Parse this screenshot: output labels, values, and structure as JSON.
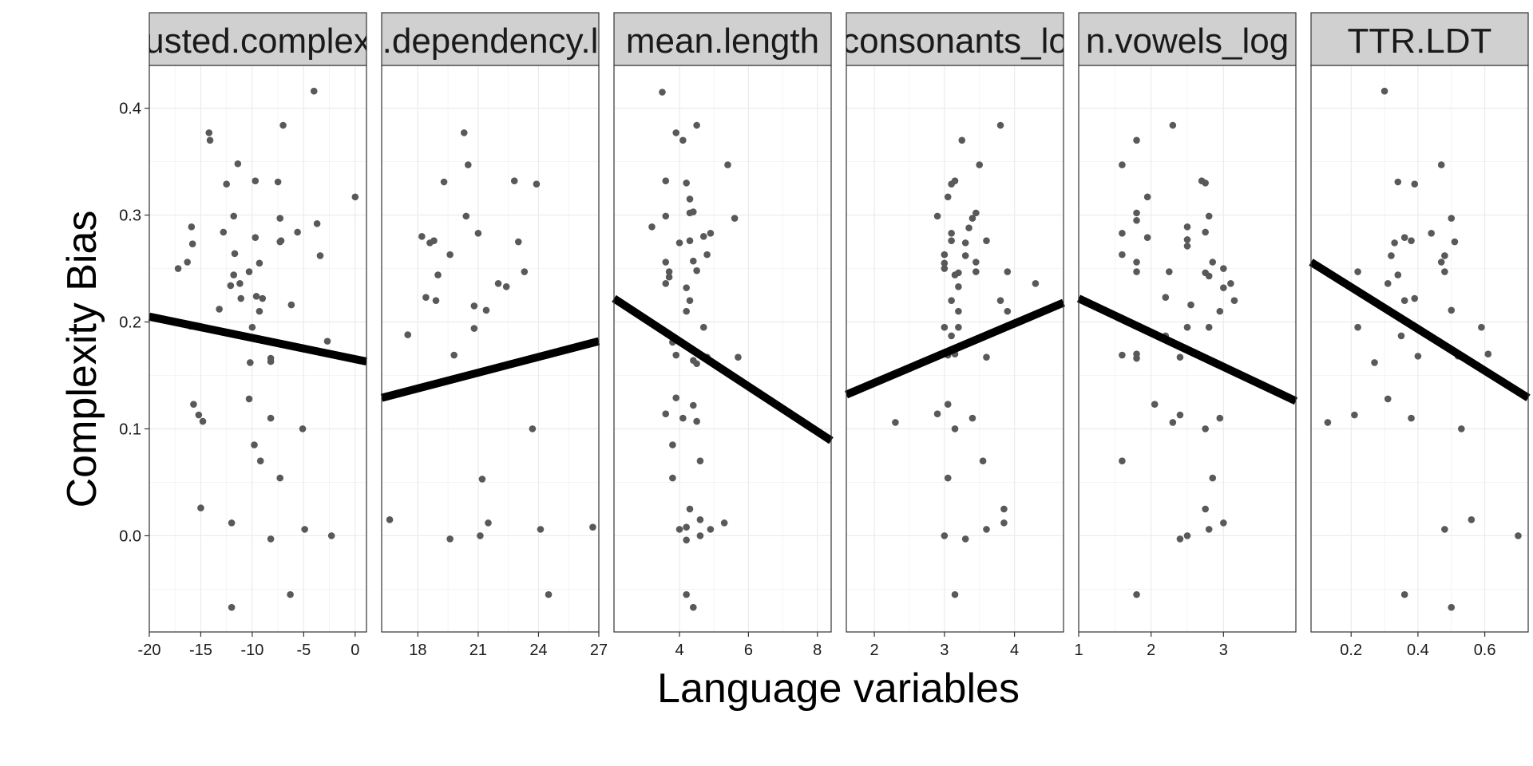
{
  "chart_data": {
    "type": "scatter",
    "layout": "facets",
    "xlabel": "Language variables",
    "ylabel": "Complexity Bias",
    "ylim": [
      -0.09,
      0.44
    ],
    "yticks": [
      0.0,
      0.1,
      0.2,
      0.3,
      0.4
    ],
    "ytick_labels": [
      "0.0",
      "0.1",
      "0.2",
      "0.3",
      "0.4"
    ],
    "grid": true,
    "point_color": "#595959",
    "line_color": "#000000",
    "facets": [
      {
        "label": "usted.complex",
        "xlim": [
          -20,
          1.1
        ],
        "xticks": [
          -20,
          -15,
          -10,
          -5,
          0
        ],
        "xtick_labels": [
          "-20",
          "-15",
          "-10",
          "-5",
          "0"
        ],
        "fit": [
          [
            -20,
            0.205
          ],
          [
            1.1,
            0.163
          ]
        ],
        "points": [
          [
            -17.2,
            0.25
          ],
          [
            -16.3,
            0.256
          ],
          [
            -15.9,
            0.289
          ],
          [
            -15.8,
            0.273
          ],
          [
            -14.2,
            0.377
          ],
          [
            -14.1,
            0.37
          ],
          [
            -13.2,
            0.212
          ],
          [
            -12.8,
            0.284
          ],
          [
            -12.5,
            0.329
          ],
          [
            -12.1,
            0.234
          ],
          [
            -11.8,
            0.299
          ],
          [
            -11.7,
            0.264
          ],
          [
            -11.8,
            0.244
          ],
          [
            -11.4,
            0.348
          ],
          [
            -11.2,
            0.236
          ],
          [
            -11.1,
            0.222
          ],
          [
            -10.3,
            0.247
          ],
          [
            -10.0,
            0.195
          ],
          [
            -9.7,
            0.332
          ],
          [
            -9.7,
            0.279
          ],
          [
            -9.6,
            0.224
          ],
          [
            -9.3,
            0.255
          ],
          [
            -9.3,
            0.21
          ],
          [
            -9.0,
            0.222
          ],
          [
            -8.2,
            0.166
          ],
          [
            -8.2,
            0.163
          ],
          [
            -7.5,
            0.331
          ],
          [
            -7.3,
            0.297
          ],
          [
            -7.2,
            0.276
          ],
          [
            -7.0,
            0.384
          ],
          [
            -7.3,
            0.275
          ],
          [
            -6.2,
            0.216
          ],
          [
            -5.6,
            0.284
          ],
          [
            -4.0,
            0.416
          ],
          [
            -3.7,
            0.292
          ],
          [
            -3.4,
            0.262
          ],
          [
            -2.7,
            0.182
          ],
          [
            0.0,
            0.317
          ],
          [
            -16.0,
            0.196
          ],
          [
            -15.7,
            0.123
          ],
          [
            -15.2,
            0.113
          ],
          [
            -14.8,
            0.107
          ],
          [
            -15.0,
            0.026
          ],
          [
            -12.0,
            0.012
          ],
          [
            -12.0,
            -0.067
          ],
          [
            -10.2,
            0.162
          ],
          [
            -10.3,
            0.128
          ],
          [
            -9.8,
            0.085
          ],
          [
            -9.2,
            0.07
          ],
          [
            -8.2,
            0.11
          ],
          [
            -8.2,
            -0.003
          ],
          [
            -7.3,
            0.054
          ],
          [
            -6.3,
            -0.055
          ],
          [
            -5.1,
            0.1
          ],
          [
            -4.9,
            0.006
          ],
          [
            -2.3,
            0.0
          ]
        ]
      },
      {
        "label": ".dependency.l",
        "xlim": [
          16.2,
          27
        ],
        "xticks": [
          18,
          21,
          24,
          27
        ],
        "xtick_labels": [
          "18",
          "21",
          "24",
          "27"
        ],
        "fit": [
          [
            16.2,
            0.129
          ],
          [
            27,
            0.182
          ]
        ],
        "points": [
          [
            16.6,
            0.015
          ],
          [
            17.5,
            0.188
          ],
          [
            18.2,
            0.28
          ],
          [
            18.4,
            0.223
          ],
          [
            18.6,
            0.274
          ],
          [
            18.8,
            0.276
          ],
          [
            19.0,
            0.244
          ],
          [
            18.9,
            0.22
          ],
          [
            19.3,
            0.331
          ],
          [
            19.6,
            0.263
          ],
          [
            19.8,
            0.169
          ],
          [
            19.6,
            -0.003
          ],
          [
            20.3,
            0.377
          ],
          [
            20.4,
            0.299
          ],
          [
            20.5,
            0.347
          ],
          [
            20.8,
            0.215
          ],
          [
            20.8,
            0.194
          ],
          [
            21.0,
            0.283
          ],
          [
            21.1,
            0.0
          ],
          [
            21.2,
            0.053
          ],
          [
            21.4,
            0.211
          ],
          [
            21.5,
            0.012
          ],
          [
            22.0,
            0.236
          ],
          [
            22.4,
            0.233
          ],
          [
            22.8,
            0.332
          ],
          [
            23.0,
            0.275
          ],
          [
            23.3,
            0.247
          ],
          [
            23.7,
            0.1
          ],
          [
            23.9,
            0.329
          ],
          [
            24.1,
            0.006
          ],
          [
            24.5,
            -0.055
          ],
          [
            26.7,
            0.008
          ]
        ]
      },
      {
        "label": "mean.length",
        "xlim": [
          2.1,
          8.4
        ],
        "xticks": [
          4,
          6,
          8
        ],
        "xtick_labels": [
          "4",
          "6",
          "8"
        ],
        "fit": [
          [
            2.1,
            0.222
          ],
          [
            8.4,
            0.089
          ]
        ],
        "points": [
          [
            3.2,
            0.289
          ],
          [
            3.5,
            0.415
          ],
          [
            3.6,
            0.332
          ],
          [
            3.6,
            0.299
          ],
          [
            3.6,
            0.256
          ],
          [
            3.7,
            0.247
          ],
          [
            3.6,
            0.236
          ],
          [
            3.7,
            0.242
          ],
          [
            3.6,
            0.114
          ],
          [
            3.8,
            0.181
          ],
          [
            3.8,
            0.085
          ],
          [
            3.8,
            0.054
          ],
          [
            3.9,
            0.377
          ],
          [
            4.0,
            0.274
          ],
          [
            3.9,
            0.169
          ],
          [
            3.9,
            0.129
          ],
          [
            4.0,
            0.006
          ],
          [
            4.1,
            0.37
          ],
          [
            4.2,
            0.33
          ],
          [
            4.1,
            0.11
          ],
          [
            4.2,
            0.232
          ],
          [
            4.2,
            0.008
          ],
          [
            4.3,
            0.315
          ],
          [
            4.3,
            0.302
          ],
          [
            4.2,
            0.21
          ],
          [
            4.3,
            0.276
          ],
          [
            4.2,
            -0.004
          ],
          [
            4.2,
            -0.055
          ],
          [
            4.3,
            0.22
          ],
          [
            4.3,
            0.025
          ],
          [
            4.4,
            0.303
          ],
          [
            4.4,
            0.122
          ],
          [
            4.4,
            0.257
          ],
          [
            4.5,
            0.384
          ],
          [
            4.4,
            0.164
          ],
          [
            4.5,
            0.248
          ],
          [
            4.5,
            0.161
          ],
          [
            4.5,
            0.107
          ],
          [
            4.4,
            -0.067
          ],
          [
            4.6,
            0.015
          ],
          [
            4.6,
            0.07
          ],
          [
            4.7,
            0.28
          ],
          [
            4.6,
            0.0
          ],
          [
            4.7,
            0.195
          ],
          [
            4.8,
            0.263
          ],
          [
            4.8,
            0.167
          ],
          [
            4.9,
            0.283
          ],
          [
            4.9,
            0.006
          ],
          [
            5.3,
            0.012
          ],
          [
            5.4,
            0.347
          ],
          [
            5.6,
            0.297
          ],
          [
            5.7,
            0.167
          ]
        ]
      },
      {
        "label": "consonants_lo",
        "xlim": [
          1.6,
          4.7
        ],
        "xticks": [
          2,
          3,
          4
        ],
        "xtick_labels": [
          "2",
          "3",
          "4"
        ],
        "fit": [
          [
            1.6,
            0.132
          ],
          [
            4.7,
            0.218
          ]
        ],
        "points": [
          [
            2.3,
            0.106
          ],
          [
            2.9,
            0.299
          ],
          [
            2.9,
            0.114
          ],
          [
            3.0,
            0.263
          ],
          [
            3.0,
            0.255
          ],
          [
            3.0,
            0.25
          ],
          [
            3.05,
            0.317
          ],
          [
            3.0,
            0.195
          ],
          [
            3.05,
            0.169
          ],
          [
            3.05,
            0.123
          ],
          [
            3.05,
            0.054
          ],
          [
            3.0,
            0.0
          ],
          [
            3.1,
            0.329
          ],
          [
            3.1,
            0.283
          ],
          [
            3.1,
            0.276
          ],
          [
            3.1,
            0.22
          ],
          [
            3.1,
            0.187
          ],
          [
            3.15,
            0.332
          ],
          [
            3.15,
            0.244
          ],
          [
            3.2,
            0.246
          ],
          [
            3.2,
            0.21
          ],
          [
            3.15,
            0.17
          ],
          [
            3.15,
            0.1
          ],
          [
            3.15,
            -0.055
          ],
          [
            3.2,
            0.233
          ],
          [
            3.2,
            0.195
          ],
          [
            3.2,
            0.176
          ],
          [
            3.25,
            0.37
          ],
          [
            3.3,
            0.274
          ],
          [
            3.3,
            0.262
          ],
          [
            3.3,
            -0.003
          ],
          [
            3.35,
            0.288
          ],
          [
            3.4,
            0.297
          ],
          [
            3.4,
            0.11
          ],
          [
            3.45,
            0.302
          ],
          [
            3.45,
            0.256
          ],
          [
            3.45,
            0.247
          ],
          [
            3.5,
            0.347
          ],
          [
            3.55,
            0.07
          ],
          [
            3.6,
            0.276
          ],
          [
            3.6,
            0.167
          ],
          [
            3.6,
            0.006
          ],
          [
            3.8,
            0.384
          ],
          [
            3.8,
            0.22
          ],
          [
            3.85,
            0.025
          ],
          [
            3.85,
            0.012
          ],
          [
            3.9,
            0.247
          ],
          [
            3.9,
            0.21
          ],
          [
            4.3,
            0.236
          ]
        ]
      },
      {
        "label": "n.vowels_log",
        "xlim": [
          1.0,
          4.0
        ],
        "xticks": [
          1,
          2,
          3
        ],
        "xtick_labels": [
          "1",
          "2",
          "3"
        ],
        "fit": [
          [
            1.0,
            0.222
          ],
          [
            4.0,
            0.126
          ]
        ],
        "points": [
          [
            1.6,
            0.347
          ],
          [
            1.6,
            0.283
          ],
          [
            1.6,
            0.263
          ],
          [
            1.6,
            0.169
          ],
          [
            1.6,
            0.07
          ],
          [
            1.8,
            0.37
          ],
          [
            1.8,
            0.302
          ],
          [
            1.8,
            0.295
          ],
          [
            1.8,
            0.256
          ],
          [
            1.8,
            0.247
          ],
          [
            1.8,
            0.17
          ],
          [
            1.8,
            0.166
          ],
          [
            1.8,
            -0.055
          ],
          [
            1.95,
            0.317
          ],
          [
            1.95,
            0.279
          ],
          [
            2.05,
            0.123
          ],
          [
            2.2,
            0.223
          ],
          [
            2.2,
            0.187
          ],
          [
            2.25,
            0.247
          ],
          [
            2.3,
            0.384
          ],
          [
            2.3,
            0.106
          ],
          [
            2.4,
            0.167
          ],
          [
            2.4,
            0.113
          ],
          [
            2.4,
            -0.003
          ],
          [
            2.5,
            0.289
          ],
          [
            2.5,
            0.277
          ],
          [
            2.5,
            0.271
          ],
          [
            2.5,
            0.195
          ],
          [
            2.5,
            0.0
          ],
          [
            2.55,
            0.216
          ],
          [
            2.7,
            0.332
          ],
          [
            2.75,
            0.33
          ],
          [
            2.75,
            0.246
          ],
          [
            2.75,
            0.1
          ],
          [
            2.75,
            0.025
          ],
          [
            2.75,
            0.284
          ],
          [
            2.8,
            0.299
          ],
          [
            2.8,
            0.243
          ],
          [
            2.8,
            0.195
          ],
          [
            2.8,
            0.006
          ],
          [
            2.85,
            0.256
          ],
          [
            2.85,
            0.054
          ],
          [
            2.95,
            0.21
          ],
          [
            2.95,
            0.11
          ],
          [
            3.0,
            0.25
          ],
          [
            3.0,
            0.232
          ],
          [
            3.0,
            0.012
          ],
          [
            3.1,
            0.236
          ],
          [
            3.15,
            0.22
          ]
        ]
      },
      {
        "label": "TTR.LDT",
        "xlim": [
          0.08,
          0.73
        ],
        "xticks": [
          0.2,
          0.4,
          0.6
        ],
        "xtick_labels": [
          "0.2",
          "0.4",
          "0.6"
        ],
        "fit": [
          [
            0.08,
            0.256
          ],
          [
            0.73,
            0.129
          ]
        ],
        "points": [
          [
            0.13,
            0.106
          ],
          [
            0.21,
            0.113
          ],
          [
            0.22,
            0.247
          ],
          [
            0.22,
            0.195
          ],
          [
            0.27,
            0.162
          ],
          [
            0.3,
            0.416
          ],
          [
            0.31,
            0.236
          ],
          [
            0.31,
            0.128
          ],
          [
            0.32,
            0.262
          ],
          [
            0.33,
            0.274
          ],
          [
            0.34,
            0.244
          ],
          [
            0.34,
            0.331
          ],
          [
            0.35,
            0.187
          ],
          [
            0.36,
            0.22
          ],
          [
            0.36,
            0.279
          ],
          [
            0.36,
            -0.055
          ],
          [
            0.38,
            0.276
          ],
          [
            0.38,
            0.11
          ],
          [
            0.39,
            0.329
          ],
          [
            0.39,
            0.222
          ],
          [
            0.4,
            0.168
          ],
          [
            0.44,
            0.283
          ],
          [
            0.47,
            0.347
          ],
          [
            0.47,
            0.256
          ],
          [
            0.48,
            0.262
          ],
          [
            0.48,
            0.247
          ],
          [
            0.48,
            0.006
          ],
          [
            0.5,
            0.297
          ],
          [
            0.5,
            0.211
          ],
          [
            0.5,
            -0.067
          ],
          [
            0.51,
            0.275
          ],
          [
            0.52,
            0.168
          ],
          [
            0.53,
            0.1
          ],
          [
            0.56,
            0.015
          ],
          [
            0.59,
            0.195
          ],
          [
            0.61,
            0.17
          ],
          [
            0.7,
            0.0
          ]
        ]
      }
    ]
  }
}
